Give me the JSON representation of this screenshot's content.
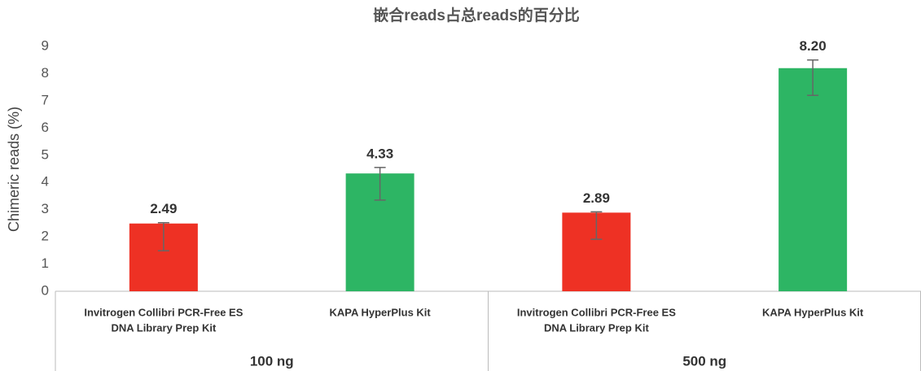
{
  "chart_data": {
    "type": "bar",
    "title": "嵌合reads占总reads的百分比",
    "y_label": "Chimeric reads (%)",
    "categories": [
      [
        "Invitrogen Collibri PCR-Free ES",
        "DNA Library Prep Kit"
      ],
      [
        "KAPA HyperPlus Kit"
      ],
      [
        "Invitrogen Collibri PCR-Free ES",
        "DNA Library Prep Kit"
      ],
      [
        "KAPA HyperPlus Kit"
      ]
    ],
    "groups": [
      "100 ng",
      "500 ng"
    ],
    "values": [
      2.49,
      4.33,
      2.89,
      8.2
    ],
    "value_labels": [
      "2.49",
      "4.33",
      "2.89",
      "8.20"
    ],
    "error_minus": [
      1.0,
      0.98,
      0.98,
      1.0
    ],
    "error_plus": [
      0.03,
      0.22,
      0.03,
      0.3
    ],
    "colors": [
      "#ee3124",
      "#2db564",
      "#ee3124",
      "#2db564"
    ],
    "ylim": [
      0,
      9
    ],
    "yticks": [
      0,
      1,
      2,
      3,
      4,
      5,
      6,
      7,
      8,
      9
    ],
    "grid": false
  }
}
